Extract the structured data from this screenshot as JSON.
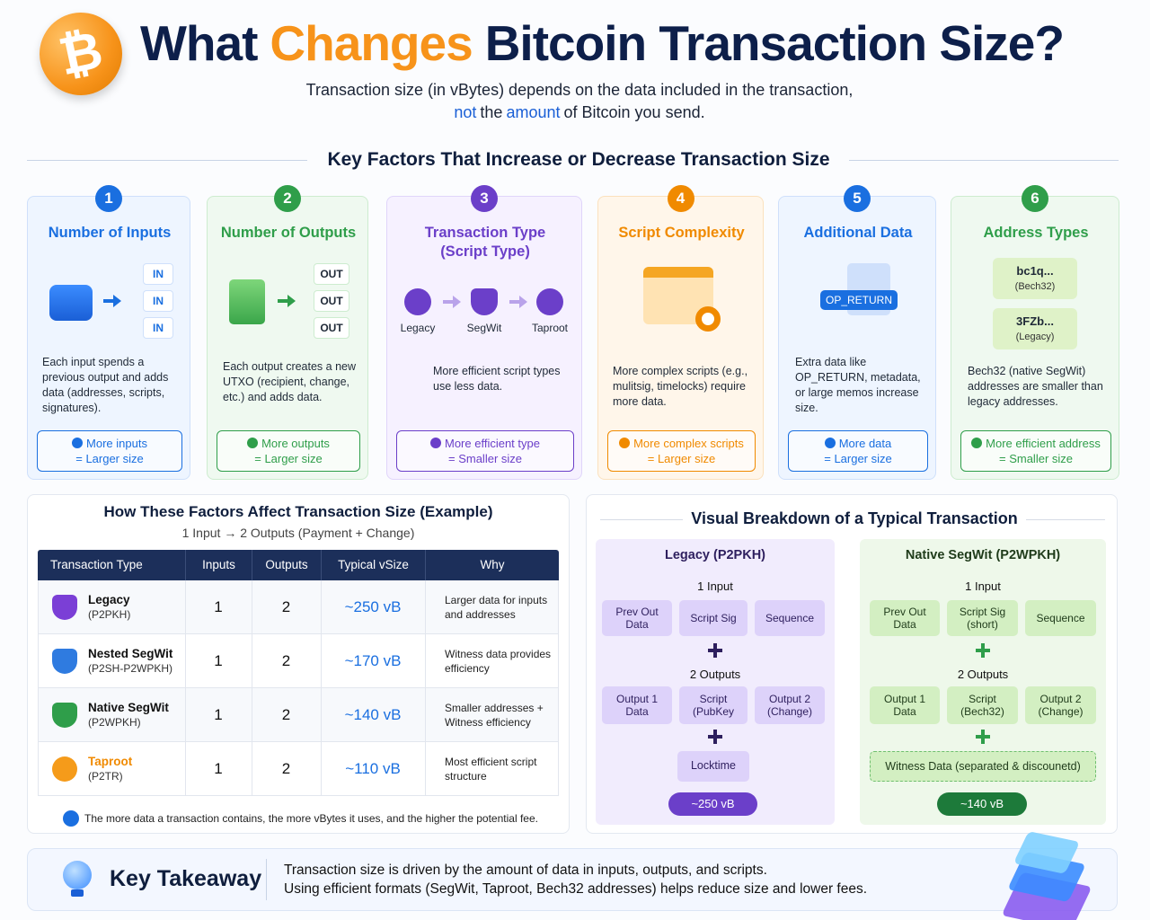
{
  "header": {
    "logo": "₿",
    "title": [
      "What",
      "Changes",
      "Bitcoin Transaction Size?"
    ],
    "subtitle": {
      "line1": "Transaction size (in vBytes) depends on the data included in the transaction,",
      "line2": [
        "not",
        "the",
        "amount",
        "of Bitcoin you send."
      ]
    }
  },
  "factors": {
    "heading": "Key Factors That Increase or Decrease Transaction Size",
    "cards": [
      {
        "number": 1,
        "title": "Number of Inputs",
        "labels": [
          "IN",
          "IN",
          "IN"
        ],
        "description": "Each input spends a previous output and adds data (addresses, scripts, signatures).",
        "effect": [
          "More inputs",
          "= Larger size"
        ]
      },
      {
        "number": 2,
        "title": "Number of Outputs",
        "labels": [
          "OUT",
          "OUT",
          "OUT"
        ],
        "description": "Each output creates a new UTXO (recipient, change, etc.) and adds data.",
        "effect": [
          "More outputs",
          "= Larger size"
        ]
      },
      {
        "number": 3,
        "title": "Transaction Type (Script Type)",
        "labels": [
          "Legacy",
          "SegWit",
          "Taproot"
        ],
        "description": "More efficient script types use less data.",
        "effect": [
          "More efficient type",
          "= Smaller size"
        ]
      },
      {
        "number": 4,
        "title": "Script Complexity",
        "labels": [],
        "description": "More complex scripts (e.g., mulitsig, timelocks) require more data.",
        "effect": [
          "More complex scripts",
          "= Larger size"
        ]
      },
      {
        "number": 5,
        "title": "Additional Data",
        "labels": [
          "OP_RETURN"
        ],
        "description": "Extra data like OP_RETURN, metadata, or large memos increase size.",
        "effect": [
          "More data",
          "= Larger size"
        ]
      },
      {
        "number": 6,
        "title": "Address Types",
        "labels": [
          "bc1q...",
          "(Bech32)",
          "3FZb...",
          "(Legacy)"
        ],
        "description": "Bech32 (native SegWit) addresses are smaller than legacy addresses.",
        "effect": [
          "More efficient address",
          "= Smaller size"
        ]
      }
    ]
  },
  "example_table": {
    "title": "How These Factors Affect Transaction Size (Example)",
    "subtitle": "1 Input → 2 Outputs (Payment + Change)",
    "columns": [
      "Transaction Type",
      "Inputs",
      "Outputs",
      "Typical vSize",
      "Why"
    ],
    "rows": [
      {
        "name": "Legacy",
        "format": "(P2PKH)",
        "inputs": 1,
        "outputs": 2,
        "vsize": "~250 vB",
        "why": "Larger data for inputs and addresses"
      },
      {
        "name": "Nested SegWit",
        "format": "(P2SH-P2WPKH)",
        "inputs": 1,
        "outputs": 2,
        "vsize": "~170 vB",
        "why": "Witness data provides efficiency"
      },
      {
        "name": "Native SegWit",
        "format": "(P2WPKH)",
        "inputs": 1,
        "outputs": 2,
        "vsize": "~140 vB",
        "why": "Smaller addresses + Witness efficiency"
      },
      {
        "name": "Taproot",
        "format": "(P2TR)",
        "inputs": 1,
        "outputs": 2,
        "vsize": "~110 vB",
        "why": "Most efficient script structure"
      }
    ],
    "note": "The more data a transaction contains, the more vBytes it uses, and the higher the potential fee."
  },
  "breakdown": {
    "title": "Visual Breakdown of a Typical Transaction",
    "columns": [
      {
        "title": "Legacy (P2PKH)",
        "inputs_label": "1 Input",
        "inputs": [
          "Prev Out Data",
          "Script Sig",
          "Sequence"
        ],
        "outputs_label": "2 Outputs",
        "outputs": [
          "Output 1 Data",
          "Script (PubKey",
          "Output 2 (Change)"
        ],
        "extra": "Locktime",
        "total": "~250 vB"
      },
      {
        "title": "Native SegWit (P2WPKH)",
        "inputs_label": "1 Input",
        "inputs": [
          "Prev Out Data",
          "Script Sig (short)",
          "Sequence"
        ],
        "outputs_label": "2 Outputs",
        "outputs": [
          "Output 1 Data",
          "Script (Bech32)",
          "Output 2 (Change)"
        ],
        "extra": "Witness Data (separated & discounetd)",
        "total": "~140 vB"
      }
    ]
  },
  "takeaway": {
    "title": "Key Takeaway",
    "lines": [
      "Transaction size is driven by the amount of data in inputs, outputs, and scripts.",
      "Using efficient formats (SegWit, Taproot, Bech32 addresses) helps reduce size and lower fees."
    ]
  }
}
